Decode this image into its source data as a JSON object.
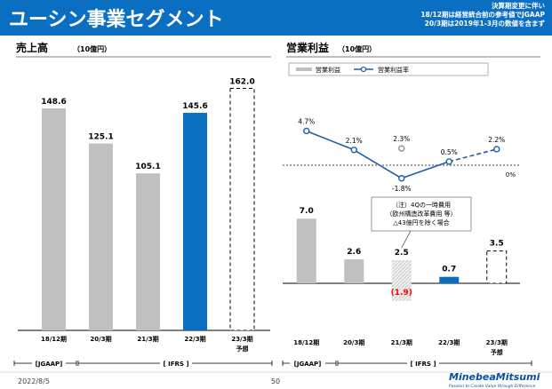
{
  "header": {
    "title": "ユーシン事業セグメント",
    "note_lines": [
      "決算期変更に伴い",
      "18/12期は経営統合前の参考値でJGAAP",
      "20/3期は2019年1-3月の数値を含まず"
    ]
  },
  "colors": {
    "brand": "#0b6fc1",
    "actual_bar": "#c0c0c0",
    "current_bar": "#0b6fc1",
    "loss": "#ff0000",
    "line": "#1f5fa8"
  },
  "footer": {
    "date": "2022/8/5",
    "page": "50",
    "logo_name": "MinebeaMitsumi",
    "logo_tagline": "Passion to Create Value through Difference"
  },
  "chart_data": [
    {
      "type": "bar",
      "title": "売上高",
      "unit": "（10億円）",
      "categories": [
        "18/12期",
        "20/3期",
        "21/3期",
        "22/3期",
        "23/3期"
      ],
      "forecast_label": "予想",
      "values": [
        148.6,
        125.1,
        105.1,
        145.6,
        162.0
      ],
      "value_labels": [
        "148.6",
        "125.1",
        "105.1",
        "145.6",
        "162.0"
      ],
      "bar_styles": [
        "actual",
        "actual",
        "actual",
        "current",
        "forecast"
      ],
      "ylim": [
        0,
        170
      ],
      "accounting_labels": [
        "[JGAAP]",
        "[ IFRS ]"
      ]
    },
    {
      "type": "bar",
      "title": "営業利益",
      "unit": "（10億円）",
      "legend": {
        "bar_label": "営業利益",
        "line_label": "営業利益率"
      },
      "categories": [
        "18/12期",
        "20/3期",
        "21/3期",
        "22/3期",
        "23/3期"
      ],
      "forecast_label": "予想",
      "values": [
        7.0,
        2.6,
        2.5,
        0.7,
        3.5
      ],
      "value_labels": [
        "7.0",
        "2.6",
        "2.5",
        "0.7",
        "3.5"
      ],
      "bar_styles": [
        "actual",
        "actual",
        "hatched",
        "current",
        "forecast"
      ],
      "loss_value": -1.9,
      "loss_label": "(1.9)",
      "ylim": [
        -2.5,
        8.5
      ],
      "margin_series": {
        "values": [
          4.7,
          2.1,
          -1.8,
          0.5,
          2.2
        ],
        "labels": [
          "4.7%",
          "2.1%",
          "-1.8%",
          "0.5%",
          "2.2%"
        ],
        "excl_one_time_value": 2.3,
        "excl_one_time_label": "2.3%",
        "zero_label": "0%"
      },
      "note_lines": [
        "（注）4Qの一時費用",
        "（欧州構造改革費用 等）",
        "△43億円を除く場合"
      ],
      "accounting_labels": [
        "[JGAAP]",
        "[ IFRS ]"
      ]
    }
  ]
}
